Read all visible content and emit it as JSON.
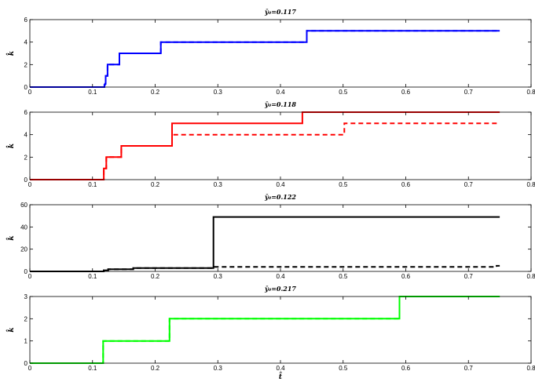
{
  "chart_data": [
    {
      "type": "line",
      "title": "ȳ₀=0.117",
      "xlabel": "",
      "ylabel": "k̂",
      "xlim": [
        0,
        0.8
      ],
      "ylim": [
        0,
        6
      ],
      "xticks": [
        "0",
        "0.1",
        "0.2",
        "0.3",
        "0.4",
        "0.5",
        "0.6",
        "0.7",
        "0.8"
      ],
      "yticks": [
        "0",
        "2",
        "4",
        "6"
      ],
      "color": "#0000ff",
      "grid": false,
      "series": [
        {
          "style": "solid",
          "steps": [
            [
              0,
              0
            ],
            [
              0.119,
              0
            ],
            [
              0.119,
              0.2
            ],
            [
              0.12,
              0.2
            ],
            [
              0.12,
              0.3
            ],
            [
              0.121,
              0.3
            ],
            [
              0.121,
              1
            ],
            [
              0.124,
              1
            ],
            [
              0.124,
              2
            ],
            [
              0.143,
              2
            ],
            [
              0.143,
              3
            ],
            [
              0.209,
              3
            ],
            [
              0.209,
              4
            ],
            [
              0.442,
              4
            ],
            [
              0.442,
              5
            ],
            [
              0.75,
              5
            ]
          ]
        },
        {
          "style": "dashed",
          "steps": [
            [
              0,
              0
            ],
            [
              0.119,
              0
            ],
            [
              0.119,
              0.2
            ],
            [
              0.12,
              0.2
            ],
            [
              0.12,
              0.3
            ],
            [
              0.121,
              0.3
            ],
            [
              0.121,
              1
            ],
            [
              0.124,
              1
            ],
            [
              0.124,
              2
            ],
            [
              0.143,
              2
            ],
            [
              0.143,
              3
            ],
            [
              0.209,
              3
            ],
            [
              0.209,
              4
            ],
            [
              0.442,
              4
            ],
            [
              0.442,
              5
            ],
            [
              0.75,
              5
            ]
          ]
        }
      ]
    },
    {
      "type": "line",
      "title": "ȳ₀=0.118",
      "xlabel": "",
      "ylabel": "k̂",
      "xlim": [
        0,
        0.8
      ],
      "ylim": [
        0,
        6
      ],
      "xticks": [
        "0",
        "0.1",
        "0.2",
        "0.3",
        "0.4",
        "0.5",
        "0.6",
        "0.7",
        "0.8"
      ],
      "yticks": [
        "0",
        "2",
        "4",
        "6"
      ],
      "color": "#ff0000",
      "grid": false,
      "series": [
        {
          "style": "solid",
          "steps": [
            [
              0,
              0
            ],
            [
              0.118,
              0
            ],
            [
              0.118,
              1
            ],
            [
              0.122,
              1
            ],
            [
              0.122,
              2
            ],
            [
              0.146,
              2
            ],
            [
              0.146,
              3
            ],
            [
              0.227,
              3
            ],
            [
              0.227,
              5
            ],
            [
              0.435,
              5
            ],
            [
              0.435,
              6
            ],
            [
              0.75,
              6
            ]
          ]
        },
        {
          "style": "dashed",
          "steps": [
            [
              0,
              0
            ],
            [
              0.118,
              0
            ],
            [
              0.118,
              1
            ],
            [
              0.122,
              1
            ],
            [
              0.122,
              2
            ],
            [
              0.146,
              2
            ],
            [
              0.146,
              3
            ],
            [
              0.227,
              3
            ],
            [
              0.227,
              4
            ],
            [
              0.502,
              4
            ],
            [
              0.502,
              5
            ],
            [
              0.75,
              5
            ]
          ]
        }
      ]
    },
    {
      "type": "line",
      "title": "ȳ₀=0.122",
      "xlabel": "",
      "ylabel": "k̂",
      "xlim": [
        0,
        0.8
      ],
      "ylim": [
        0,
        60
      ],
      "xticks": [
        "0",
        "0.1",
        "0.2",
        "0.3",
        "0.4",
        "0.5",
        "0.6",
        "0.7",
        "0.8"
      ],
      "yticks": [
        "0",
        "20",
        "40",
        "60"
      ],
      "color": "#000000",
      "grid": false,
      "series": [
        {
          "style": "solid",
          "steps": [
            [
              0,
              0
            ],
            [
              0.118,
              0
            ],
            [
              0.118,
              1
            ],
            [
              0.125,
              1
            ],
            [
              0.125,
              2
            ],
            [
              0.165,
              2
            ],
            [
              0.165,
              3
            ],
            [
              0.293,
              3
            ],
            [
              0.293,
              49
            ],
            [
              0.75,
              49
            ]
          ]
        },
        {
          "style": "dashed",
          "steps": [
            [
              0,
              0
            ],
            [
              0.118,
              0
            ],
            [
              0.118,
              1
            ],
            [
              0.125,
              1
            ],
            [
              0.125,
              2
            ],
            [
              0.165,
              2
            ],
            [
              0.165,
              3
            ],
            [
              0.293,
              3
            ],
            [
              0.293,
              4
            ],
            [
              0.745,
              4
            ],
            [
              0.745,
              5
            ],
            [
              0.75,
              5
            ]
          ]
        }
      ]
    },
    {
      "type": "line",
      "title": "ȳ₀=0.217",
      "xlabel": "t̂",
      "ylabel": "k̂",
      "xlim": [
        0,
        0.8
      ],
      "ylim": [
        0,
        3
      ],
      "xticks": [
        "0",
        "0.1",
        "0.2",
        "0.3",
        "0.4",
        "0.5",
        "0.6",
        "0.7",
        "0.8"
      ],
      "yticks": [
        "0",
        "1",
        "2",
        "3"
      ],
      "color": "#00ff00",
      "grid": false,
      "series": [
        {
          "style": "solid",
          "steps": [
            [
              0,
              0
            ],
            [
              0.117,
              0
            ],
            [
              0.117,
              1
            ],
            [
              0.223,
              1
            ],
            [
              0.223,
              2
            ],
            [
              0.59,
              2
            ],
            [
              0.59,
              3
            ],
            [
              0.75,
              3
            ]
          ]
        },
        {
          "style": "dashed",
          "steps": [
            [
              0,
              0
            ],
            [
              0.117,
              0
            ],
            [
              0.117,
              1
            ],
            [
              0.223,
              1
            ],
            [
              0.223,
              2
            ],
            [
              0.59,
              2
            ],
            [
              0.59,
              3
            ],
            [
              0.75,
              3
            ]
          ]
        }
      ]
    }
  ]
}
